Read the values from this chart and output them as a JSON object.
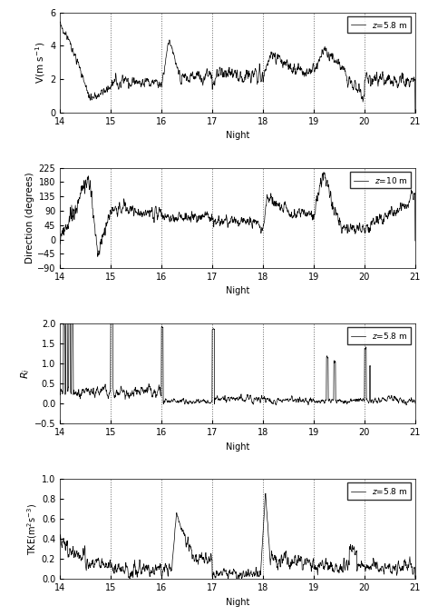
{
  "xlim": [
    14,
    21
  ],
  "xticks": [
    14,
    15,
    16,
    17,
    18,
    19,
    20,
    21
  ],
  "xlabel": "Night",
  "vline_positions": [
    15,
    16,
    17,
    18,
    19,
    20
  ],
  "panel1": {
    "ylabel": "V(m s$^{-1}$)",
    "ylim": [
      0,
      6
    ],
    "yticks": [
      0,
      2,
      4,
      6
    ],
    "legend_label": "z=5.8 m"
  },
  "panel2": {
    "ylabel": "Direction (degrees)",
    "ylim": [
      -90,
      225
    ],
    "yticks": [
      -90,
      -45,
      0,
      45,
      90,
      135,
      180,
      225
    ],
    "legend_label": "z=10 m"
  },
  "panel3": {
    "ylabel": "$R_i$",
    "ylim": [
      -0.5,
      2.0
    ],
    "yticks": [
      -0.5,
      0.0,
      0.5,
      1.0,
      1.5,
      2.0
    ],
    "legend_label": "z=5.8 m"
  },
  "panel4": {
    "ylabel": "TKE(m$^2$s$^{-3}$)",
    "ylim": [
      0,
      1.0
    ],
    "yticks": [
      0.0,
      0.2,
      0.4,
      0.6,
      0.8,
      1.0
    ],
    "legend_label": "z=5.8 m"
  },
  "line_color": "#000000",
  "line_width": 0.5,
  "vline_color": "#666666",
  "vline_style": "dotted",
  "background_color": "#ffffff",
  "n_points": 1400
}
